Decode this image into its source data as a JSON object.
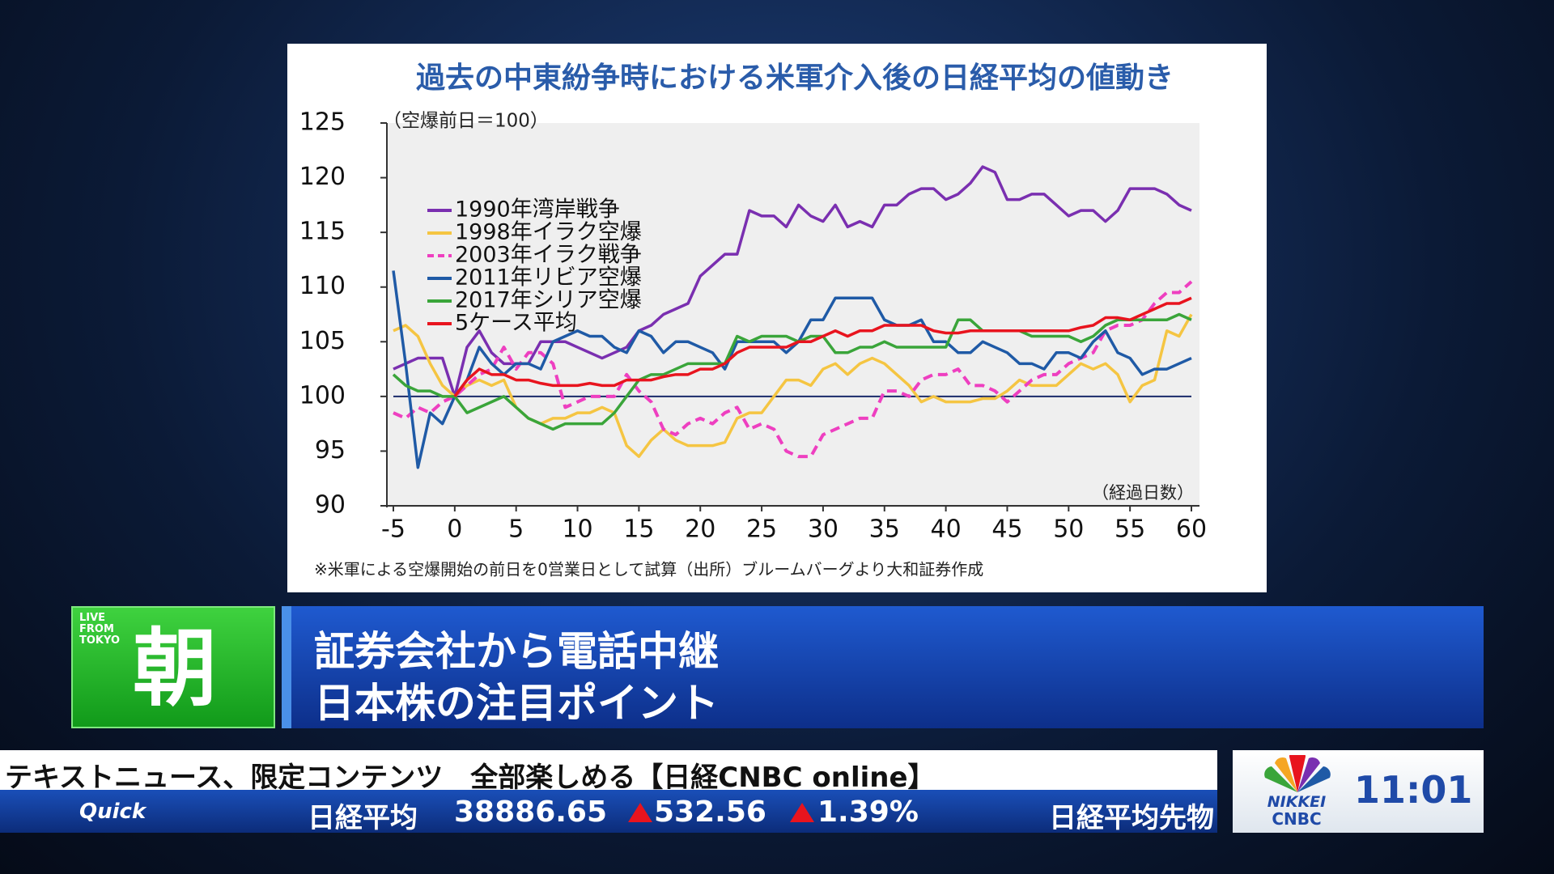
{
  "chart_data": {
    "type": "line",
    "title": "過去の中東紛争時における米軍介入後の日経平均の値動き",
    "y_unit": "（空爆前日＝100）",
    "x_unit": "（経過日数）",
    "note": "※米軍による空爆開始の前日を0営業日として試算（出所）ブルームバーグより大和証券作成",
    "x": [
      -5,
      -4,
      -3,
      -2,
      -1,
      0,
      1,
      2,
      3,
      4,
      5,
      6,
      7,
      8,
      9,
      10,
      11,
      12,
      13,
      14,
      15,
      16,
      17,
      18,
      19,
      20,
      21,
      22,
      23,
      24,
      25,
      26,
      27,
      28,
      29,
      30,
      31,
      32,
      33,
      34,
      35,
      36,
      37,
      38,
      39,
      40,
      41,
      42,
      43,
      44,
      45,
      46,
      47,
      48,
      49,
      50,
      51,
      52,
      53,
      54,
      55,
      56,
      57,
      58,
      59,
      60
    ],
    "series": [
      {
        "name": "1990年湾岸戦争",
        "color": "#7a2fb0",
        "dash": false,
        "values": [
          102.5,
          103,
          103.5,
          103.5,
          103.5,
          100,
          104.5,
          106,
          104,
          103,
          103,
          103,
          105,
          105,
          105,
          104.5,
          104,
          103.5,
          104,
          104.5,
          106,
          106.5,
          107.5,
          108,
          108.5,
          111,
          112,
          113,
          113,
          117,
          116.5,
          116.5,
          115.5,
          117.5,
          116.5,
          116,
          117.5,
          115.5,
          116,
          115.5,
          117.5,
          117.5,
          118.5,
          119,
          119,
          118,
          118.5,
          119.5,
          121,
          120.5,
          118,
          118,
          118.5,
          118.5,
          117.5,
          116.5,
          117,
          117,
          116,
          117,
          119,
          119,
          119,
          118.5,
          117.5,
          117
        ]
      },
      {
        "name": "1998年イラク空爆",
        "color": "#f5c542",
        "dash": false,
        "values": [
          106,
          106.5,
          105.5,
          103,
          101,
          100,
          101,
          101.5,
          101,
          101.5,
          99,
          98,
          97.5,
          98,
          98,
          98.5,
          98.5,
          99,
          98.5,
          95.5,
          94.5,
          96,
          97,
          96,
          95.5,
          95.5,
          95.5,
          95.8,
          98,
          98.5,
          98.5,
          100,
          101.5,
          101.5,
          101,
          102.5,
          103,
          102,
          103,
          103.5,
          103,
          102,
          101,
          99.5,
          100,
          99.5,
          99.5,
          99.5,
          99.8,
          99.8,
          100.5,
          101.5,
          101,
          101,
          101,
          102,
          103,
          102.5,
          103,
          102,
          99.5,
          101,
          101.5,
          106,
          105.5,
          107.5
        ]
      },
      {
        "name": "2003年イラク戦争",
        "color": "#ee3fc0",
        "dash": true,
        "values": [
          98.5,
          98,
          99,
          98.5,
          99.5,
          100,
          101,
          102,
          102.5,
          104.5,
          102.5,
          104,
          104,
          103,
          99,
          99.5,
          100,
          100,
          100,
          102,
          100.5,
          99.5,
          97,
          96.5,
          97.5,
          98,
          97.5,
          98.5,
          99,
          97,
          97.5,
          97,
          95,
          94.5,
          94.5,
          96.5,
          97,
          97.5,
          98,
          98,
          100.5,
          100.5,
          100,
          101.5,
          102,
          102,
          102.5,
          101,
          101,
          100.5,
          99.5,
          100.5,
          101.5,
          102,
          102,
          103,
          103.5,
          104,
          106,
          106.5,
          106.5,
          107,
          108.5,
          109.5,
          109.5,
          110.5
        ]
      },
      {
        "name": "2011年リビア空爆",
        "color": "#1f5aa6",
        "dash": false,
        "values": [
          111.5,
          103,
          93.5,
          98.5,
          97.5,
          100,
          101.5,
          104.5,
          103,
          102,
          103,
          103,
          102.5,
          105,
          105.5,
          106,
          105.5,
          105.5,
          104.5,
          104,
          106,
          105.5,
          104,
          105,
          105,
          104.5,
          104,
          102.5,
          105,
          105,
          105,
          105,
          104,
          105,
          107,
          107,
          109,
          109,
          109,
          109,
          107,
          106.5,
          106.5,
          107,
          105,
          105,
          104,
          104,
          105,
          104.5,
          104,
          103,
          103,
          102.5,
          104,
          104,
          103.5,
          105,
          106,
          104,
          103.5,
          102,
          102.5,
          102.5,
          103,
          103.5
        ]
      },
      {
        "name": "2017年シリア空爆",
        "color": "#3aa53a",
        "dash": false,
        "values": [
          102,
          101,
          100.5,
          100.5,
          100,
          100,
          98.5,
          99,
          99.5,
          100,
          99,
          98,
          97.5,
          97,
          97.5,
          97.5,
          97.5,
          97.5,
          98.5,
          100,
          101.5,
          102,
          102,
          102.5,
          103,
          103,
          103,
          103,
          105.5,
          105,
          105.5,
          105.5,
          105.5,
          105,
          105.5,
          105.5,
          104,
          104,
          104.5,
          104.5,
          105,
          104.5,
          104.5,
          104.5,
          104.5,
          104.5,
          107,
          107,
          106,
          106,
          106,
          106,
          105.5,
          105.5,
          105.5,
          105.5,
          105,
          105.5,
          106.5,
          107,
          107,
          107,
          107,
          107,
          107.5,
          107
        ]
      },
      {
        "name": "5ケース平均",
        "color": "#e8141e",
        "dash": false,
        "values": [
          null,
          null,
          null,
          null,
          null,
          100,
          101.5,
          102.5,
          102,
          102,
          101.5,
          101.5,
          101.2,
          101,
          101,
          101,
          101.2,
          101,
          101,
          101.5,
          101.5,
          101.5,
          101.8,
          102,
          102,
          102.5,
          102.5,
          103,
          104,
          104.5,
          104.5,
          104.5,
          104.5,
          105,
          105,
          105.5,
          106,
          105.5,
          106,
          106,
          106.5,
          106.5,
          106.5,
          106.5,
          106,
          105.8,
          105.8,
          106,
          106,
          106,
          106,
          106,
          106,
          106,
          106,
          106,
          106.3,
          106.5,
          107.2,
          107.2,
          107,
          107.5,
          108,
          108.5,
          108.5,
          109
        ]
      }
    ],
    "reference_line": 100,
    "xlim": [
      -5,
      60
    ],
    "ylim": [
      90,
      125
    ],
    "xticks": [
      -5,
      0,
      5,
      10,
      15,
      20,
      25,
      30,
      35,
      40,
      45,
      50,
      55,
      60
    ],
    "yticks": [
      90,
      95,
      100,
      105,
      110,
      115,
      120,
      125
    ],
    "legend": "upper left",
    "grid": false
  },
  "program": {
    "badge": "LIVE FROM TOKYO",
    "show": "朝",
    "headline": [
      "証券会社から電話中継",
      "日本株の注目ポイント"
    ]
  },
  "ticker": {
    "promo": "テキストニュース、限定コンテンツ　全部楽しめる【日経CNBC online】",
    "source": "Quick",
    "index": "日経平均",
    "price": "38886.65",
    "change": "532.56",
    "change_pct": "1.39%",
    "next": "日経平均先物"
  },
  "logo": {
    "brand": "NIKKEI",
    "network": "CNBC",
    "time": "11:01"
  }
}
